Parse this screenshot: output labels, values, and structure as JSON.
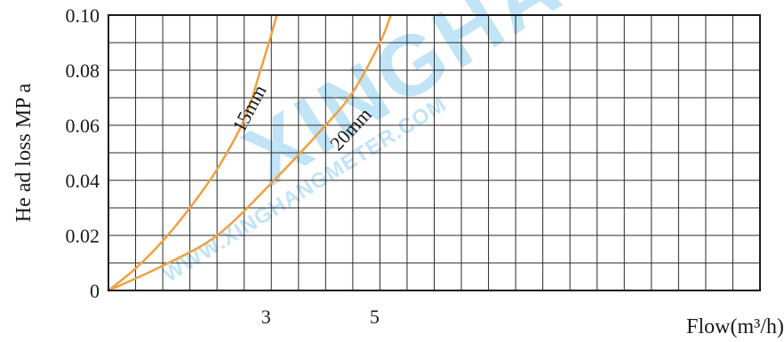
{
  "chart_data": {
    "type": "line",
    "ylabel": "He ad loss MP a",
    "xlabel": "Flow(m³/h)",
    "xlim": [
      0,
      12
    ],
    "ylim": [
      0,
      0.1
    ],
    "x_gridlines": 24,
    "y_gridlines": 10,
    "grid": true,
    "x_ticks": [
      {
        "value": 3,
        "label": "3"
      },
      {
        "value": 5,
        "label": "5"
      }
    ],
    "y_ticks": [
      {
        "value": 0,
        "label": "0"
      },
      {
        "value": 0.02,
        "label": "0.02"
      },
      {
        "value": 0.04,
        "label": "0.04"
      },
      {
        "value": 0.06,
        "label": "0.06"
      },
      {
        "value": 0.08,
        "label": "0.08"
      },
      {
        "value": 0.1,
        "label": "0.10"
      }
    ],
    "series": [
      {
        "name": "15mm",
        "color": "#f0a040",
        "points": [
          [
            0,
            0
          ],
          [
            0.5,
            0.008
          ],
          [
            1.0,
            0.018
          ],
          [
            1.5,
            0.03
          ],
          [
            2.0,
            0.044
          ],
          [
            2.5,
            0.062
          ],
          [
            2.8,
            0.08
          ],
          [
            3.0,
            0.093
          ],
          [
            3.1,
            0.1
          ]
        ]
      },
      {
        "name": "20mm",
        "color": "#f0a040",
        "points": [
          [
            0,
            0
          ],
          [
            1.0,
            0.009
          ],
          [
            2.0,
            0.02
          ],
          [
            3.0,
            0.039
          ],
          [
            4.0,
            0.06
          ],
          [
            4.5,
            0.072
          ],
          [
            5.0,
            0.09
          ],
          [
            5.2,
            0.1
          ]
        ]
      }
    ]
  },
  "watermark": {
    "large": "XINGHANG",
    "small": "WWW.XINGHANGMETER.COM",
    "color": "#8ecdf0"
  }
}
